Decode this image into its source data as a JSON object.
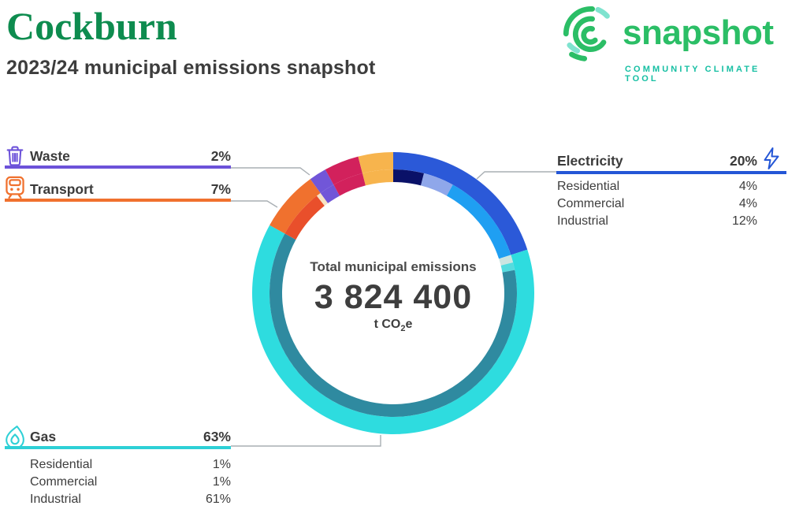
{
  "header": {
    "title": "Cockburn",
    "subtitle": "2023/24 municipal emissions snapshot"
  },
  "logo": {
    "wordmark": "snapshot",
    "tagline": "COMMUNITY CLIMATE TOOL"
  },
  "icons": {
    "waste": "trash-icon",
    "transport": "train-icon",
    "electricity": "lightning-bolt-icon",
    "gas": "flame-icon",
    "logo": "spiral-arcs-icon"
  },
  "colors": {
    "title_green": "#0E8C4F",
    "brand_green": "#2BBE66",
    "brand_teal": "#16BFA3",
    "text_dark": "#3D3D3D",
    "leader_grey": "#A9AFB4"
  },
  "center": {
    "label": "Total municipal emissions",
    "value": "3 824 400",
    "unit_main": "t CO",
    "unit_sub": "2",
    "unit_end": "e"
  },
  "legend": {
    "waste": {
      "label": "Waste",
      "value": "2%",
      "color": "#6C52D9"
    },
    "transport": {
      "label": "Transport",
      "value": "7%",
      "color": "#F0712E"
    },
    "electricity": {
      "label": "Electricity",
      "value": "20%",
      "color": "#2456D6",
      "rows": [
        {
          "label": "Residential",
          "value": "4%"
        },
        {
          "label": "Commercial",
          "value": "4%"
        },
        {
          "label": "Industrial",
          "value": "12%"
        }
      ]
    },
    "gas": {
      "label": "Gas",
      "value": "63%",
      "color": "#2ED0D6",
      "rows": [
        {
          "label": "Residential",
          "value": "1%"
        },
        {
          "label": "Commercial",
          "value": "1%"
        },
        {
          "label": "Industrial",
          "value": "61%"
        }
      ]
    }
  },
  "chart_data": {
    "type": "pie",
    "variant": "two-ring-donut",
    "title": "Total municipal emissions",
    "center_value": 3824400,
    "center_value_display": "3 824 400",
    "unit": "t CO2e",
    "start_angle_deg": 0,
    "direction": "clockwise",
    "outer_ring": [
      {
        "label": "Electricity",
        "pct": 20,
        "color": "#2B59D8"
      },
      {
        "label": "Gas",
        "pct": 63,
        "color": "#2EDCDF"
      },
      {
        "label": "Transport",
        "pct": 7,
        "color": "#F0712E"
      },
      {
        "label": "Waste",
        "pct": 2,
        "color": "#7156D8"
      },
      {
        "label": "",
        "pct": 4,
        "color": "#D2215C"
      },
      {
        "label": "",
        "pct": 4,
        "color": "#F7B44D"
      }
    ],
    "inner_ring": [
      {
        "label": "Electricity Residential",
        "pct": 4,
        "color": "#0A1168"
      },
      {
        "label": "Electricity Commercial",
        "pct": 4,
        "color": "#8FA7EA"
      },
      {
        "label": "Electricity Industrial",
        "pct": 12,
        "color": "#1F9FF2"
      },
      {
        "label": "Gas Residential",
        "pct": 1,
        "color": "#CBE5E1"
      },
      {
        "label": "Gas Commercial",
        "pct": 1,
        "color": "#54DCDF"
      },
      {
        "label": "Gas Industrial",
        "pct": 61,
        "color": "#2F8AA0"
      },
      {
        "label": "Transport",
        "pct": 6.4,
        "color": "#E94F2B"
      },
      {
        "label": "",
        "pct": 0.6,
        "color": "#F6E3C4"
      },
      {
        "label": "Waste",
        "pct": 2,
        "color": "#7156D8"
      },
      {
        "label": "",
        "pct": 4,
        "color": "#D2215C"
      },
      {
        "label": "",
        "pct": 4,
        "color": "#F7B44D"
      }
    ]
  }
}
